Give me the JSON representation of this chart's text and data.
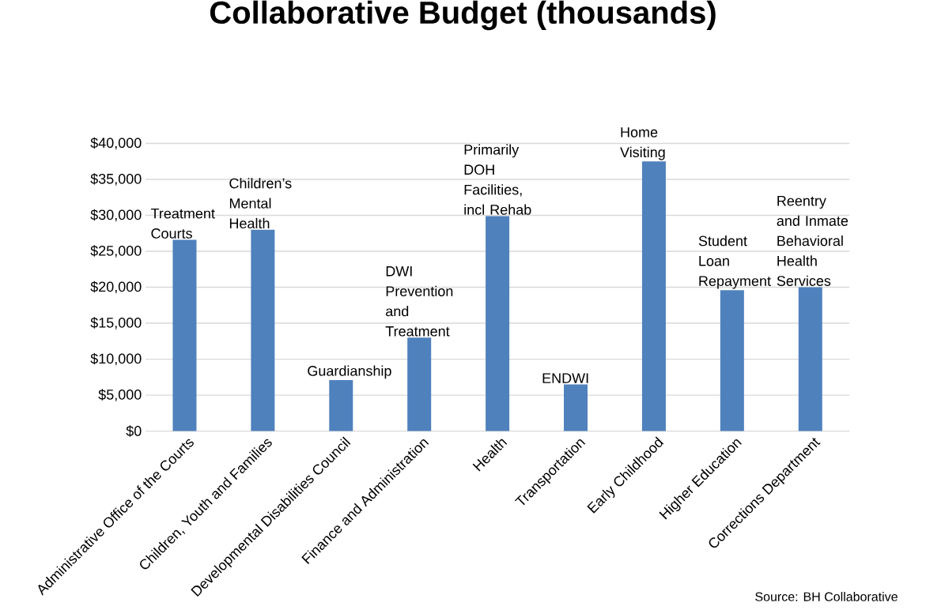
{
  "chart_data": {
    "type": "bar",
    "title": "Collaborative Budget (thousands)",
    "categories": [
      "Administrative Office of the Courts",
      "Children, Youth and Families",
      "Developmental Disabilities Council",
      "Finance and Administration",
      "Health",
      "Transportation",
      "Early Childhood",
      "Higher Education",
      "Corrections Department"
    ],
    "values": [
      26600,
      28000,
      7100,
      13000,
      29900,
      6500,
      37500,
      19600,
      20000
    ],
    "color": "#4f81bd",
    "ylim": [
      0,
      40000
    ],
    "yticks": [
      {
        "value": 0,
        "label": "$0"
      },
      {
        "value": 5000,
        "label": "$5,000"
      },
      {
        "value": 10000,
        "label": "$10,000"
      },
      {
        "value": 15000,
        "label": "$15,000"
      },
      {
        "value": 20000,
        "label": "$20,000"
      },
      {
        "value": 25000,
        "label": "$25,000"
      },
      {
        "value": 30000,
        "label": "$30,000"
      },
      {
        "value": 35000,
        "label": "$35,000"
      },
      {
        "value": 40000,
        "label": "$40,000"
      }
    ],
    "grid": "y",
    "annotations": [
      {
        "text": "Treatment Courts",
        "x": "Administrative Office of the Courts",
        "y": 26600
      },
      {
        "text": "Children’s Mental Health",
        "x": "Children, Youth and Families",
        "y": 28000
      },
      {
        "text": "Guardianship",
        "x": "Developmental Disabilities Council",
        "y": 7100
      },
      {
        "text": "DWI Prevention and Treatment",
        "x": "Finance and Administration",
        "y": 13000
      },
      {
        "text": "Primarily DOH Facilities, incl Rehab",
        "x": "Health",
        "y": 29900
      },
      {
        "text": "ENDWI",
        "x": "Transportation",
        "y": 6500
      },
      {
        "text": "Home Visiting",
        "x": "Early Childhood",
        "y": 37500
      },
      {
        "text": "Student Loan Repayment",
        "x": "Higher Education",
        "y": 19600
      },
      {
        "text": "Reentry and Inmate Behavioral Health Services",
        "x": "Corrections Department",
        "y": 20000
      },
      "Source: BH Collaborative"
    ]
  }
}
